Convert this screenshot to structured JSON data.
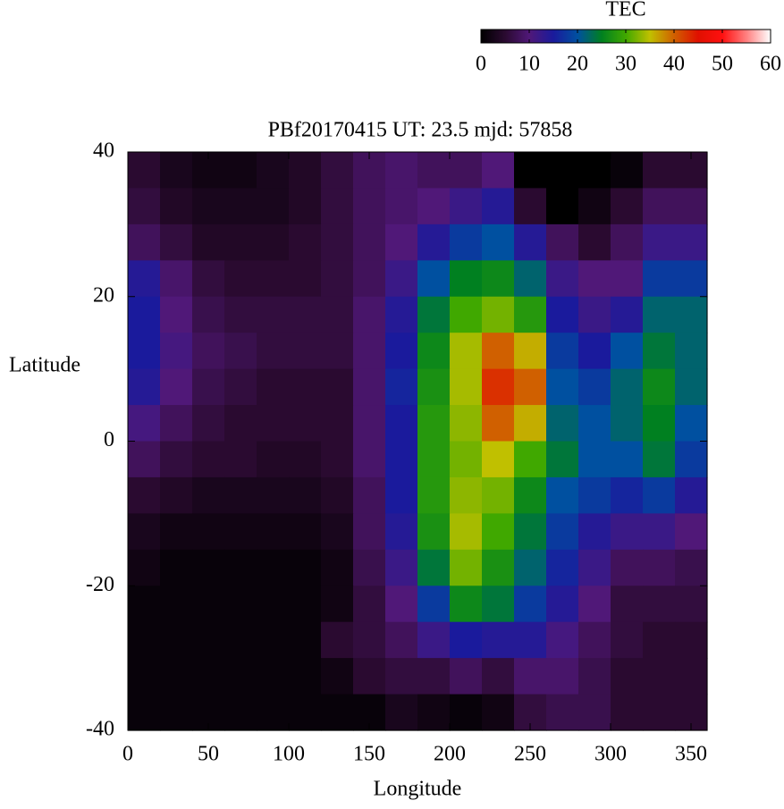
{
  "chart_data": {
    "type": "heatmap",
    "title": "PBf20170415  UT: 23.5  mjd: 57858",
    "x_label": "Longitude",
    "y_label": "Latitude",
    "colorbar_label": "TEC",
    "x": [
      10,
      30,
      50,
      70,
      90,
      110,
      130,
      150,
      170,
      190,
      210,
      230,
      250,
      270,
      290,
      310,
      330,
      350
    ],
    "y": [
      37.5,
      32.5,
      27.5,
      22.5,
      17.5,
      12.5,
      7.5,
      2.5,
      -2.5,
      -7.5,
      -12.5,
      -17.5,
      -22.5,
      -27.5,
      -32.5,
      -37.5
    ],
    "z": [
      [
        5,
        3,
        2,
        2,
        3,
        4,
        6,
        8,
        9,
        8,
        8,
        10,
        0,
        0,
        0,
        1,
        5,
        5
      ],
      [
        6,
        4,
        3,
        3,
        3,
        4,
        6,
        8,
        9,
        10,
        12,
        14,
        5,
        0,
        2,
        5,
        8,
        8
      ],
      [
        8,
        6,
        4,
        4,
        4,
        5,
        6,
        8,
        10,
        14,
        18,
        20,
        14,
        8,
        5,
        8,
        12,
        12
      ],
      [
        14,
        9,
        6,
        5,
        5,
        5,
        6,
        8,
        12,
        20,
        25,
        26,
        22,
        12,
        10,
        10,
        18,
        18
      ],
      [
        15,
        10,
        7,
        6,
        6,
        6,
        6,
        9,
        14,
        24,
        30,
        32,
        28,
        15,
        12,
        14,
        22,
        22
      ],
      [
        15,
        11,
        8,
        7,
        6,
        6,
        6,
        9,
        15,
        26,
        34,
        40,
        36,
        18,
        15,
        20,
        24,
        22
      ],
      [
        14,
        10,
        7,
        6,
        5,
        5,
        5,
        9,
        16,
        27,
        34,
        43,
        40,
        20,
        18,
        22,
        26,
        22
      ],
      [
        11,
        8,
        6,
        5,
        5,
        5,
        5,
        9,
        15,
        28,
        33,
        40,
        36,
        22,
        20,
        22,
        25,
        20
      ],
      [
        8,
        6,
        5,
        5,
        4,
        4,
        5,
        9,
        15,
        28,
        32,
        35,
        30,
        24,
        20,
        20,
        24,
        18
      ],
      [
        5,
        4,
        3,
        3,
        3,
        3,
        4,
        8,
        15,
        28,
        33,
        32,
        26,
        20,
        18,
        16,
        18,
        14
      ],
      [
        3,
        2,
        2,
        2,
        2,
        2,
        3,
        8,
        14,
        27,
        34,
        30,
        24,
        18,
        14,
        12,
        12,
        10
      ],
      [
        2,
        1,
        1,
        1,
        1,
        1,
        2,
        7,
        12,
        24,
        32,
        27,
        22,
        16,
        12,
        8,
        8,
        7
      ],
      [
        1,
        1,
        1,
        1,
        1,
        1,
        2,
        6,
        10,
        18,
        26,
        24,
        18,
        14,
        10,
        6,
        6,
        6
      ],
      [
        1,
        1,
        1,
        1,
        1,
        1,
        5,
        6,
        8,
        12,
        15,
        14,
        14,
        11,
        8,
        6,
        5,
        5
      ],
      [
        1,
        1,
        1,
        1,
        1,
        1,
        2,
        5,
        6,
        6,
        8,
        6,
        9,
        9,
        7,
        5,
        5,
        5
      ],
      [
        1,
        1,
        1,
        1,
        1,
        1,
        1,
        1,
        3,
        2,
        1,
        2,
        6,
        7,
        7,
        5,
        5,
        5
      ]
    ],
    "xlim": [
      0,
      360
    ],
    "xticks": [
      0,
      50,
      100,
      150,
      200,
      250,
      300,
      350
    ],
    "ylim": [
      -40,
      40
    ],
    "yticks": [
      -40,
      -20,
      0,
      20,
      40
    ],
    "clim": [
      0,
      60
    ],
    "cticks": [
      0,
      10,
      20,
      30,
      40,
      50,
      60
    ],
    "colorscale": [
      [
        0,
        "#000000"
      ],
      [
        5,
        "#2a0a30"
      ],
      [
        10,
        "#501878"
      ],
      [
        15,
        "#1a1a9c"
      ],
      [
        20,
        "#0050a0"
      ],
      [
        25,
        "#008020"
      ],
      [
        30,
        "#40a800"
      ],
      [
        35,
        "#c0c000"
      ],
      [
        40,
        "#d06000"
      ],
      [
        45,
        "#e01000"
      ],
      [
        50,
        "#ff1010"
      ],
      [
        55,
        "#ff8080"
      ],
      [
        60,
        "#ffffff"
      ]
    ]
  }
}
